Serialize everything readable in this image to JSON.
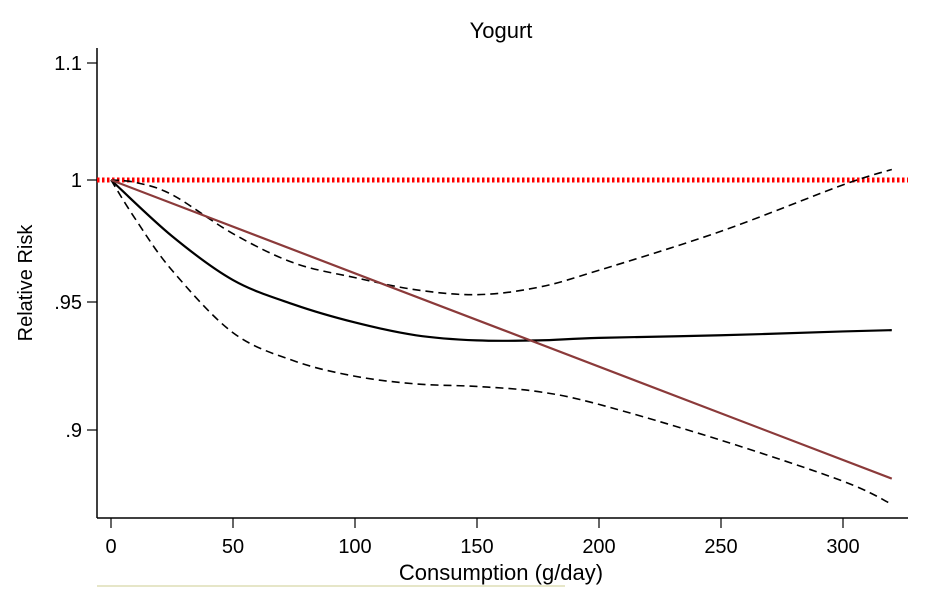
{
  "chart_data": {
    "type": "line",
    "title": "Yogurt",
    "xlabel": "Consumption (g/day)",
    "ylabel": "Relative Risk",
    "xlim": [
      -5,
      328
    ],
    "ylim": [
      0.865,
      1.11
    ],
    "x_ticks": [
      0,
      50,
      100,
      150,
      200,
      250,
      300
    ],
    "x_tick_labels": [
      "0",
      "50",
      "100",
      "150",
      "200",
      "250",
      "300"
    ],
    "y_ticks": [
      1.1,
      1,
      0.95,
      0.9
    ],
    "y_tick_labels": [
      "1.1",
      "1",
      ".95",
      ".9"
    ],
    "grid": false,
    "legend": "none",
    "reference_line": {
      "y": 1,
      "color": "#ff0000",
      "style": "dotted"
    },
    "series": [
      {
        "style": "solid",
        "color": "#000000",
        "x": [
          0,
          25,
          50,
          75,
          100,
          125,
          150,
          175,
          200,
          250,
          300,
          320
        ],
        "y": [
          1,
          0.977,
          0.959,
          0.949,
          0.942,
          0.937,
          0.935,
          0.935,
          0.936,
          0.937,
          0.9385,
          0.939
        ]
      },
      {
        "style": "dashed",
        "color": "#000000",
        "x": [
          0,
          10,
          25,
          50,
          75,
          100,
          125,
          150,
          175,
          200,
          250,
          300,
          320
        ],
        "y": [
          1,
          0.999,
          0.994,
          0.978,
          0.966,
          0.96,
          0.955,
          0.953,
          0.956,
          0.963,
          0.979,
          0.998,
          1.009
        ]
      },
      {
        "style": "dashed",
        "color": "#000000",
        "x": [
          0,
          10,
          25,
          50,
          75,
          100,
          125,
          150,
          175,
          200,
          250,
          300,
          320
        ],
        "y": [
          1,
          0.984,
          0.963,
          0.938,
          0.927,
          0.921,
          0.918,
          0.917,
          0.915,
          0.91,
          0.896,
          0.88,
          0.871
        ]
      },
      {
        "style": "solid",
        "color": "#8b3a3a",
        "x": [
          0,
          320
        ],
        "y": [
          1,
          0.881
        ]
      }
    ]
  }
}
